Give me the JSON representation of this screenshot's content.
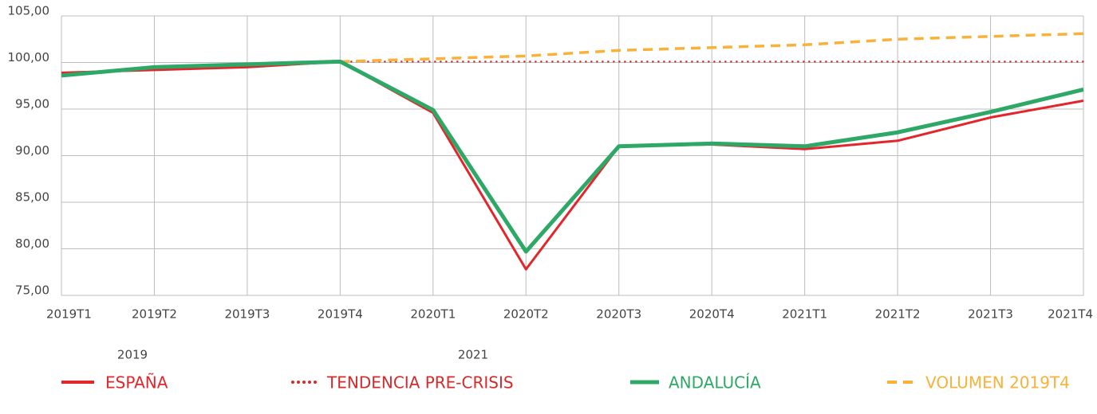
{
  "chart_data": {
    "type": "line",
    "categories": [
      "2019T1",
      "2019T2",
      "2019T3",
      "2019T4",
      "2020T1",
      "2020T2",
      "2020T3",
      "2020T4",
      "2021T1",
      "2021T2",
      "2021T3",
      "2021T4"
    ],
    "annotations": [
      "2019",
      "2021"
    ],
    "series": [
      {
        "name": "ESPAÑA",
        "color": "#e3262b",
        "style": "solid",
        "values": [
          98.9,
          99.2,
          99.5,
          100.1,
          94.6,
          77.8,
          91.0,
          91.2,
          90.7,
          91.6,
          94.1,
          95.9
        ]
      },
      {
        "name": "TENDENCIA PRE-CRISIS",
        "color": "#d42a2a",
        "style": "dotted",
        "values": [
          null,
          null,
          null,
          100.1,
          100.1,
          100.1,
          100.1,
          100.1,
          100.1,
          100.1,
          100.1,
          100.1
        ]
      },
      {
        "name": "ANDALUCÍA",
        "color": "#2ea866",
        "style": "thick",
        "values": [
          98.6,
          99.5,
          99.8,
          100.1,
          94.9,
          79.7,
          91.0,
          91.3,
          91.0,
          92.5,
          94.7,
          97.1
        ]
      },
      {
        "name": "VOLUMEN 2019T4",
        "color": "#f9b13a",
        "style": "dashed",
        "values": [
          null,
          null,
          null,
          100.1,
          100.4,
          100.7,
          101.3,
          101.6,
          101.9,
          102.5,
          102.8,
          103.1
        ]
      }
    ],
    "ylim": [
      75,
      105
    ],
    "yticks": [
      {
        "value": 75,
        "label": "75,00"
      },
      {
        "value": 80,
        "label": "80,00"
      },
      {
        "value": 85,
        "label": "85,00"
      },
      {
        "value": 90,
        "label": "90,00"
      },
      {
        "value": 95,
        "label": "95,00"
      },
      {
        "value": 100,
        "label": "100,00"
      },
      {
        "value": 105,
        "label": "105,00"
      }
    ],
    "grid": true,
    "legend": "bottom"
  }
}
